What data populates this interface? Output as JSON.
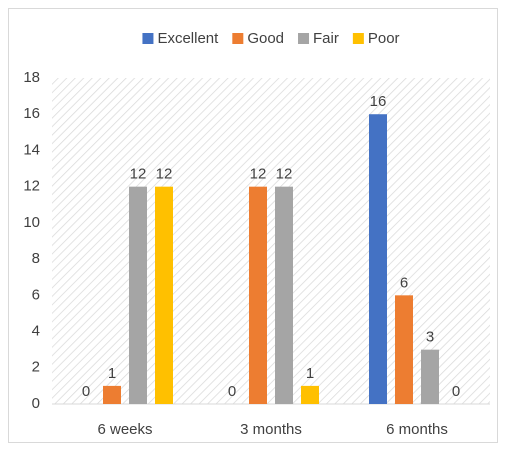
{
  "chart_data": {
    "type": "bar",
    "categories": [
      "6 weeks",
      "3 months",
      "6 months"
    ],
    "series": [
      {
        "name": "Excellent",
        "color": "#4472c4",
        "values": [
          0,
          0,
          16
        ]
      },
      {
        "name": "Good",
        "color": "#ed7d31",
        "values": [
          1,
          12,
          6
        ]
      },
      {
        "name": "Fair",
        "color": "#a5a5a5",
        "values": [
          12,
          12,
          3
        ]
      },
      {
        "name": "Poor",
        "color": "#ffc000",
        "values": [
          12,
          1,
          0
        ]
      }
    ],
    "ylim": [
      0,
      18
    ],
    "yticks": [
      0,
      2,
      4,
      6,
      8,
      10,
      12,
      14,
      16,
      18
    ],
    "grid": false,
    "legend": "top",
    "data_labels": true
  }
}
